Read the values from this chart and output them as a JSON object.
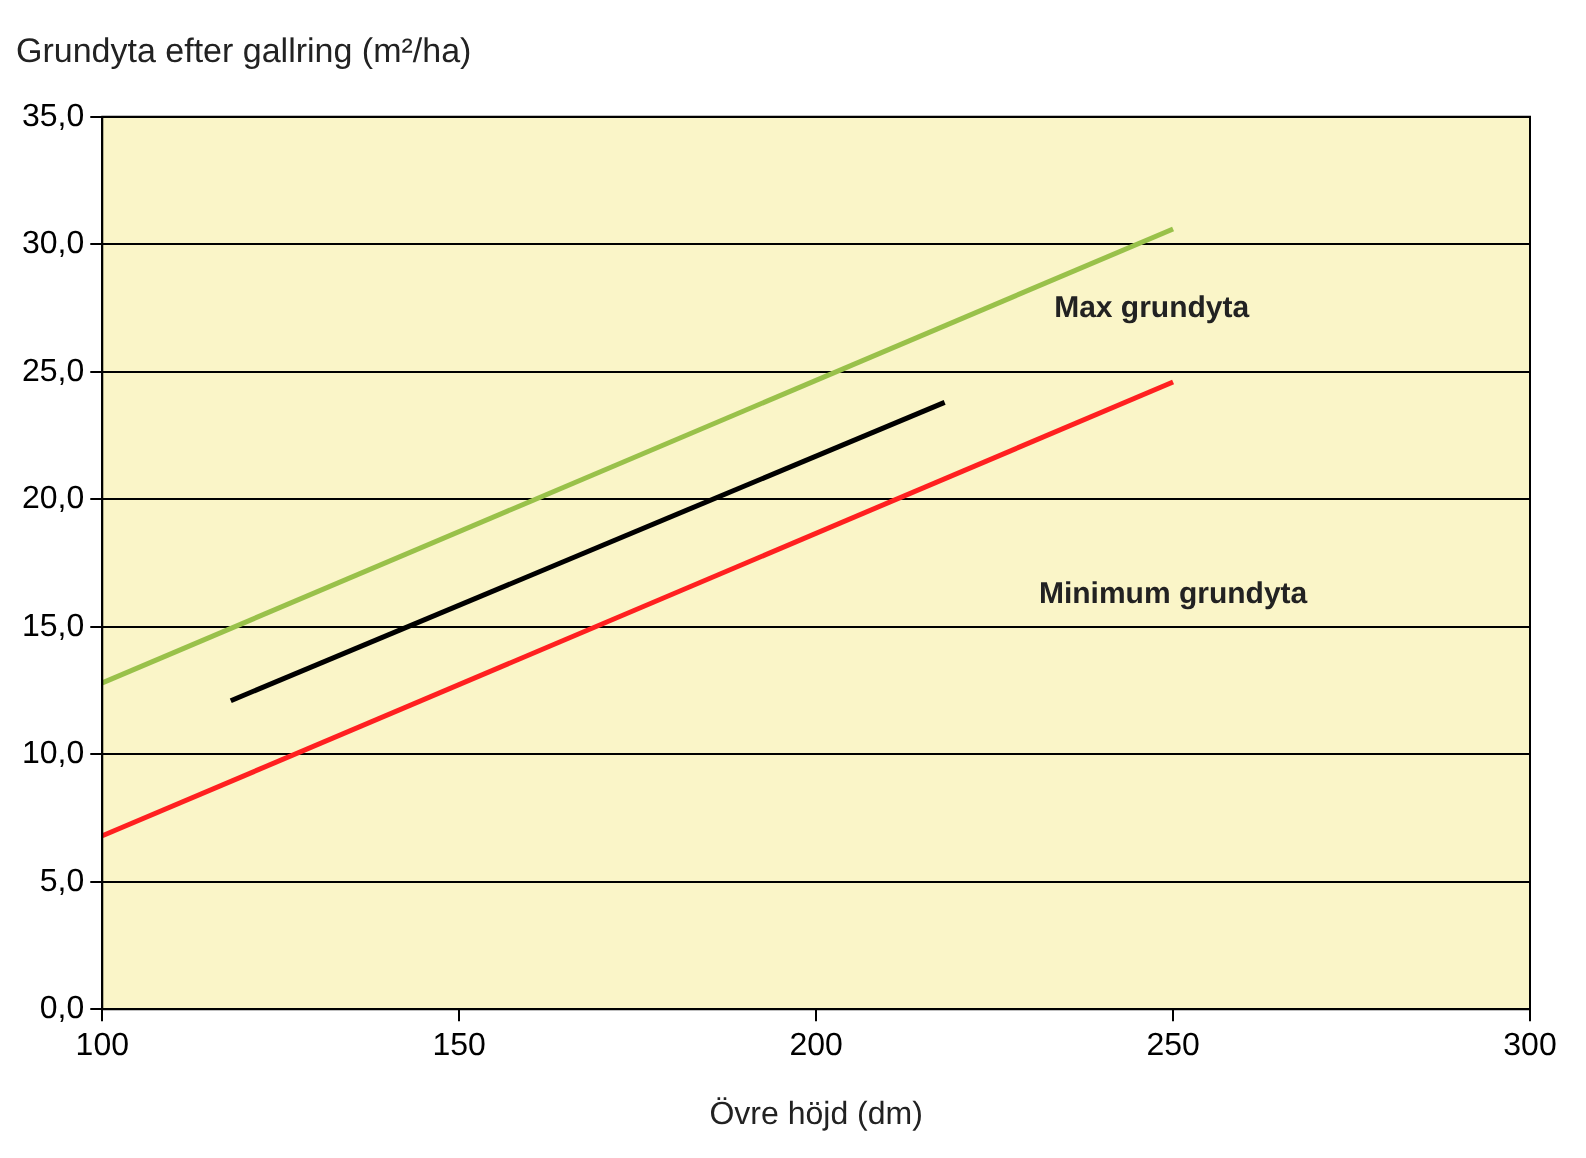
{
  "chart_data": {
    "type": "line",
    "title": "Grundyta efter gallring (m²/ha)",
    "xlabel": "Övre höjd (dm)",
    "series": [
      {
        "color": "#99c14a",
        "x": [
          100,
          250
        ],
        "values": [
          12.8,
          30.6
        ]
      },
      {
        "color": "#000000",
        "x": [
          118,
          218
        ],
        "values": [
          12.1,
          23.8
        ]
      },
      {
        "color": "#ff2020",
        "x": [
          100,
          250
        ],
        "values": [
          6.8,
          24.6
        ]
      }
    ],
    "annotations": [
      "Max grundyta",
      "Minimum grundyta"
    ],
    "xlim": [
      100,
      300
    ],
    "xticks": [
      100,
      150,
      200,
      250,
      300
    ],
    "ylim": [
      0,
      35
    ],
    "yticks": [
      {
        "value": 0,
        "label": "0,0"
      },
      {
        "value": 5,
        "label": "5,0"
      },
      {
        "value": 10,
        "label": "10,0"
      },
      {
        "value": 15,
        "label": "15,0"
      },
      {
        "value": 20,
        "label": "20,0"
      },
      {
        "value": 25,
        "label": "25,0"
      },
      {
        "value": 30,
        "label": "30,0"
      },
      {
        "value": 35,
        "label": "35,0"
      }
    ],
    "grid": "y",
    "marker": "none",
    "line_style": "solid",
    "legend": false
  }
}
